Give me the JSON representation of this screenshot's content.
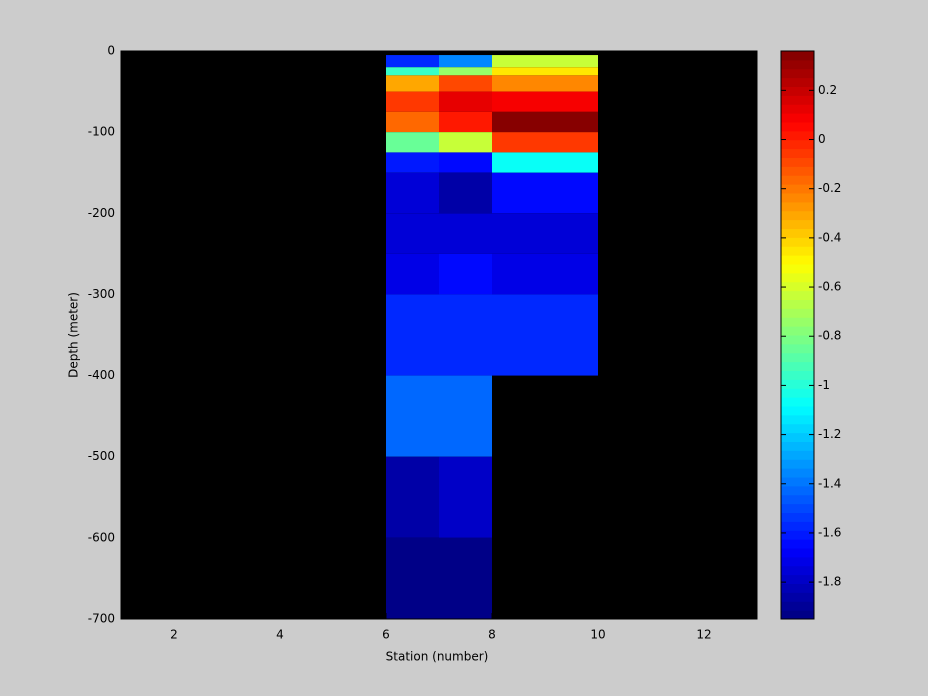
{
  "chart_data": {
    "type": "heatmap",
    "xlabel": "Station (number)",
    "ylabel": "Depth (meter)",
    "x_edges": [
      6,
      7,
      8,
      10
    ],
    "y_edges": [
      -5,
      -20,
      -30,
      -50,
      -75,
      -100,
      -125,
      -150,
      -200,
      -250,
      -300,
      -400,
      -500,
      -600,
      -700
    ],
    "values": [
      [
        -1.58,
        -1.35,
        -0.65
      ],
      [
        -0.95,
        -0.75,
        -0.45
      ],
      [
        -0.3,
        -0.1,
        -0.25
      ],
      [
        -0.05,
        0.12,
        0.1
      ],
      [
        -0.15,
        0.03,
        0.33
      ],
      [
        -0.85,
        -0.65,
        -0.05
      ],
      [
        -1.6,
        -1.65,
        -1.05
      ],
      [
        -1.75,
        -1.85,
        -1.65
      ],
      [
        -1.75,
        -1.75,
        -1.75
      ],
      [
        -1.73,
        -1.65,
        -1.73
      ],
      [
        -1.58,
        -1.58,
        -1.58
      ],
      [
        -1.42,
        -1.42,
        null
      ],
      [
        -1.85,
        -1.77,
        null
      ],
      [
        -1.92,
        -1.95,
        null
      ]
    ],
    "colormap": "jet",
    "background": "#000000",
    "xlim": [
      1,
      13
    ],
    "xticks": [
      2,
      4,
      6,
      8,
      10,
      12
    ],
    "ylim": [
      -700,
      0
    ],
    "yticks": [
      0,
      -100,
      -200,
      -300,
      -400,
      -500,
      -600,
      -700
    ],
    "clim": [
      -1.95,
      0.36
    ],
    "cticks": [
      0.2,
      0,
      -0.2,
      -0.4,
      -0.6,
      -0.8,
      -1,
      -1.2,
      -1.4,
      -1.6,
      -1.8
    ]
  }
}
